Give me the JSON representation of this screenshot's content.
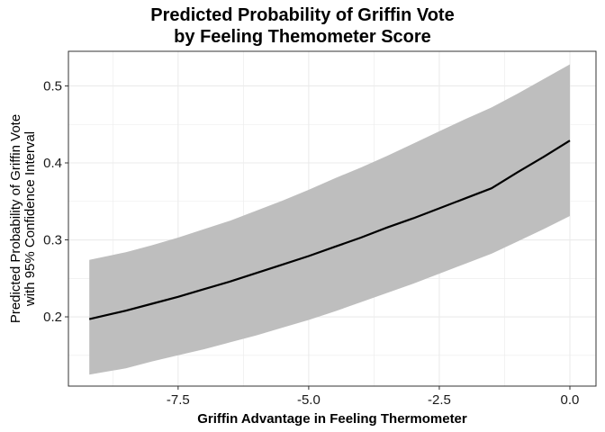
{
  "chart_data": {
    "type": "line",
    "title_line1": "Predicted Probability of Griffin Vote",
    "title_line2": "by Feeling Themometer Score",
    "xlabel": "Griffin Advantage in Feeling Thermometer",
    "ylabel_line1": "Predicted Probability of Griffin Vote",
    "ylabel_line2": "with 95% Confidence Interval",
    "xlim": [
      -9.6,
      0.5
    ],
    "ylim": [
      0.11,
      0.545
    ],
    "xticks": [
      -7.5,
      -5.0,
      -2.5,
      0.0
    ],
    "xtick_labels": [
      "-7.5",
      "-5.0",
      "-2.5",
      "0.0"
    ],
    "yticks": [
      0.2,
      0.3,
      0.4,
      0.5
    ],
    "ytick_labels": [
      "0.2",
      "0.3",
      "0.4",
      "0.5"
    ],
    "x_minor_gridlines": [
      -8.75,
      -6.25,
      -3.75,
      -1.25
    ],
    "y_minor_gridlines": [
      0.15,
      0.25,
      0.35,
      0.45
    ],
    "grid": true,
    "series": [
      {
        "x": [
          -9.2,
          -8.5,
          -8.0,
          -7.5,
          -7.0,
          -6.5,
          -6.0,
          -5.5,
          -5.0,
          -4.5,
          -4.0,
          -3.5,
          -3.0,
          -2.5,
          -2.0,
          -1.5,
          -1.0,
          -0.5,
          0.0
        ],
        "values": [
          0.197,
          0.208,
          0.217,
          0.226,
          0.236,
          0.246,
          0.257,
          0.268,
          0.279,
          0.291,
          0.303,
          0.316,
          0.328,
          0.341,
          0.354,
          0.367,
          0.388,
          0.408,
          0.429
        ],
        "lower": [
          0.125,
          0.133,
          0.142,
          0.15,
          0.158,
          0.167,
          0.176,
          0.186,
          0.196,
          0.207,
          0.219,
          0.231,
          0.243,
          0.256,
          0.269,
          0.282,
          0.298,
          0.314,
          0.331
        ],
        "upper": [
          0.274,
          0.284,
          0.293,
          0.303,
          0.314,
          0.325,
          0.338,
          0.351,
          0.365,
          0.38,
          0.394,
          0.409,
          0.425,
          0.441,
          0.457,
          0.472,
          0.49,
          0.509,
          0.528
        ]
      }
    ],
    "colors": {
      "line": "#000000",
      "ribbon": "#bebebe",
      "grid": "#ebebeb",
      "panel_border": "#333333"
    }
  }
}
